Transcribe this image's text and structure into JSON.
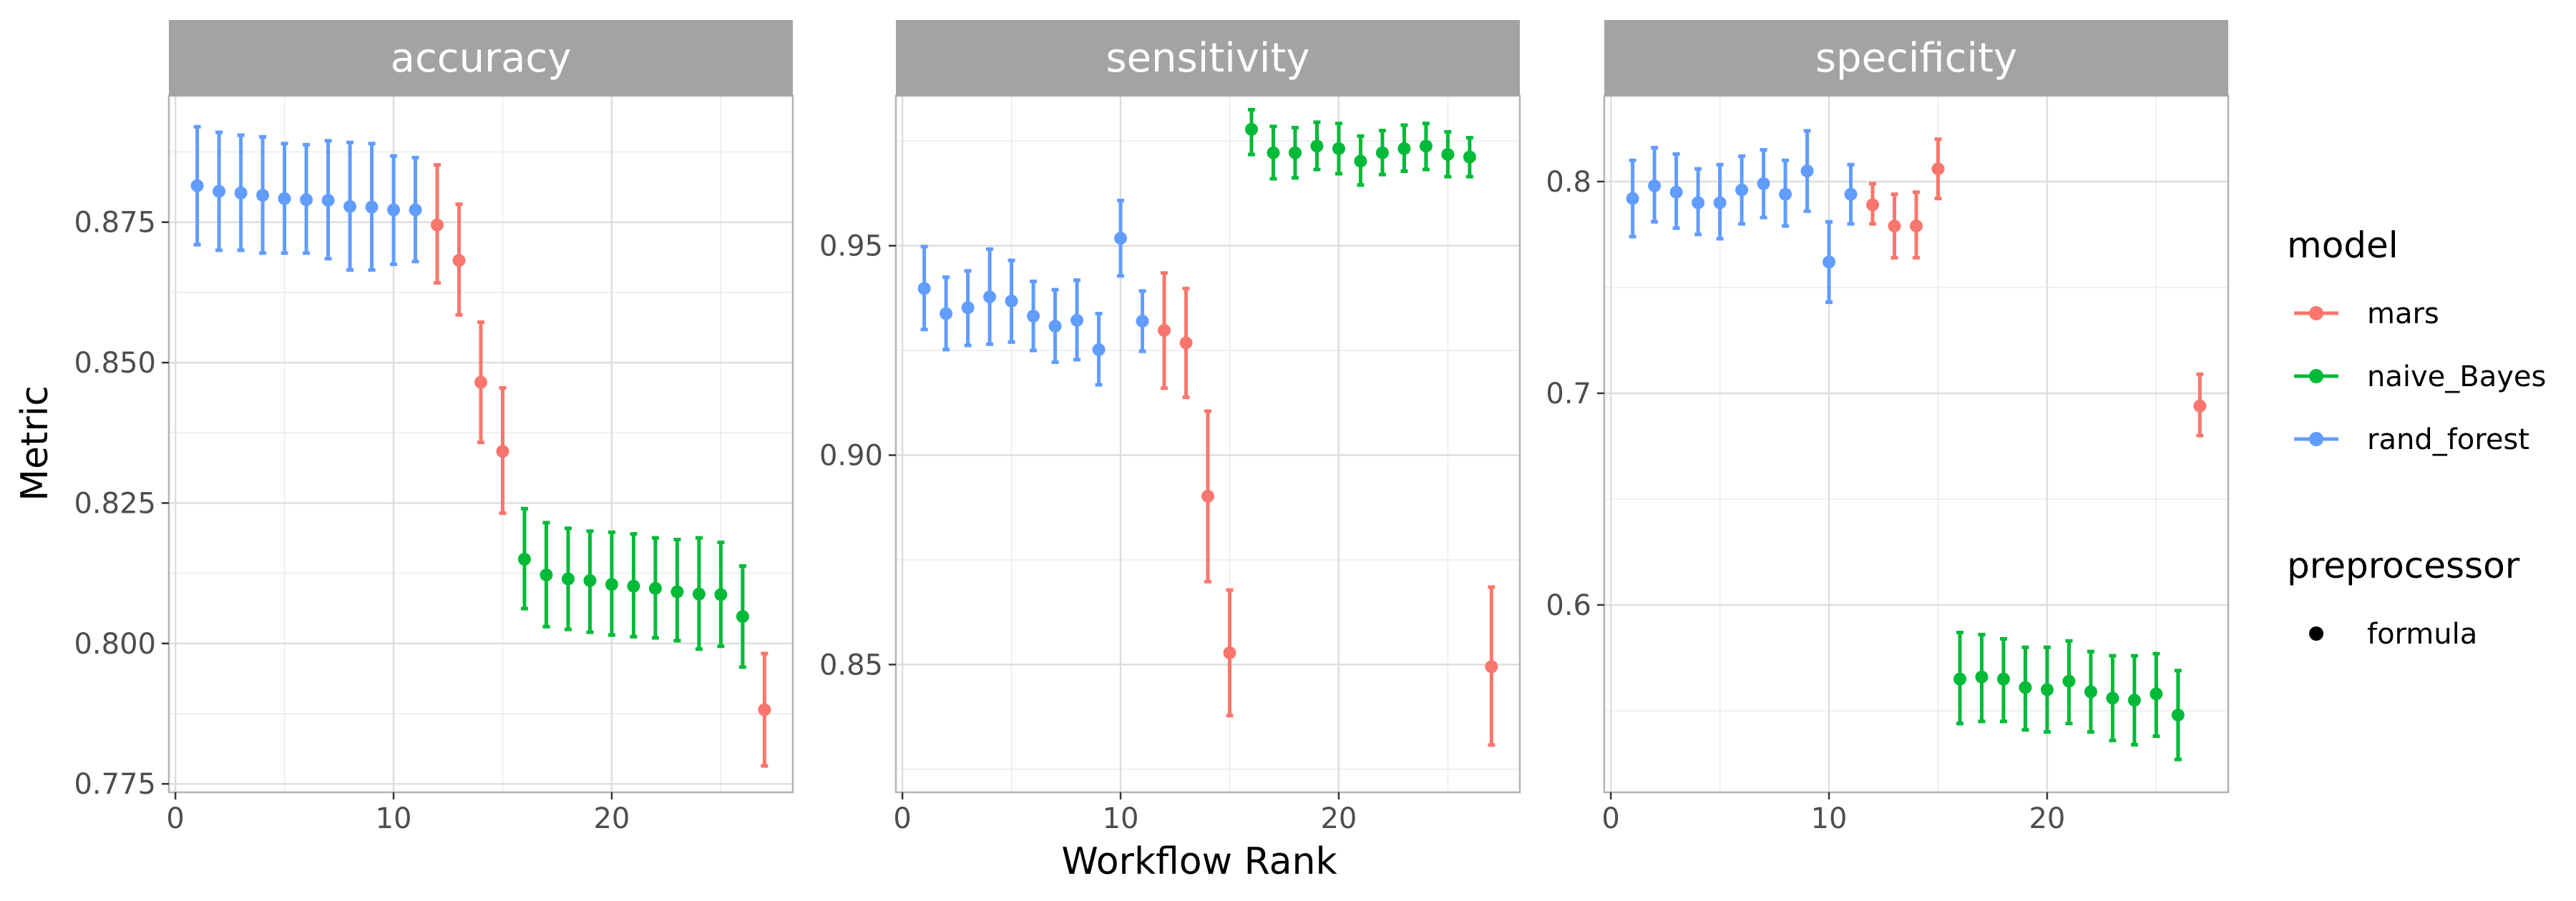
{
  "chart_data": {
    "type": "scatter",
    "xlabel": "Workflow Rank",
    "ylabel": "Metric",
    "grid": true,
    "legend_position": "right",
    "colors": {
      "mars": "#F8766D",
      "naive_Bayes": "#00BA38",
      "rand_forest": "#619CFF"
    },
    "legend": {
      "model_title": "model",
      "models": [
        "mars",
        "naive_Bayes",
        "rand_forest"
      ],
      "preprocessor_title": "preprocessor",
      "preprocessors": [
        "formula"
      ]
    },
    "x_ticks": [
      0,
      10,
      20
    ],
    "xlim": [
      -0.3,
      28.3
    ],
    "facets": [
      {
        "title": "accuracy",
        "ylim": [
          0.7735,
          0.8975
        ],
        "y_ticks": [
          0.775,
          0.8,
          0.825,
          0.85,
          0.875
        ],
        "y_tick_labels": [
          "0.775",
          "0.800",
          "0.825",
          "0.850",
          "0.875"
        ],
        "points": [
          {
            "x": 1,
            "y": 0.8815,
            "lo": 0.871,
            "hi": 0.892,
            "model": "rand_forest"
          },
          {
            "x": 2,
            "y": 0.8805,
            "lo": 0.87,
            "hi": 0.891,
            "model": "rand_forest"
          },
          {
            "x": 3,
            "y": 0.8802,
            "lo": 0.87,
            "hi": 0.8905,
            "model": "rand_forest"
          },
          {
            "x": 4,
            "y": 0.8798,
            "lo": 0.8695,
            "hi": 0.8902,
            "model": "rand_forest"
          },
          {
            "x": 5,
            "y": 0.8792,
            "lo": 0.8695,
            "hi": 0.889,
            "model": "rand_forest"
          },
          {
            "x": 6,
            "y": 0.879,
            "lo": 0.8695,
            "hi": 0.8888,
            "model": "rand_forest"
          },
          {
            "x": 7,
            "y": 0.8789,
            "lo": 0.8685,
            "hi": 0.8895,
            "model": "rand_forest"
          },
          {
            "x": 8,
            "y": 0.8778,
            "lo": 0.8665,
            "hi": 0.8892,
            "model": "rand_forest"
          },
          {
            "x": 9,
            "y": 0.8777,
            "lo": 0.8665,
            "hi": 0.889,
            "model": "rand_forest"
          },
          {
            "x": 10,
            "y": 0.8772,
            "lo": 0.8675,
            "hi": 0.8868,
            "model": "rand_forest"
          },
          {
            "x": 11,
            "y": 0.8772,
            "lo": 0.868,
            "hi": 0.8865,
            "model": "rand_forest"
          },
          {
            "x": 12,
            "y": 0.8745,
            "lo": 0.8642,
            "hi": 0.8852,
            "model": "mars"
          },
          {
            "x": 13,
            "y": 0.8682,
            "lo": 0.8585,
            "hi": 0.8782,
            "model": "mars"
          },
          {
            "x": 14,
            "y": 0.8465,
            "lo": 0.8358,
            "hi": 0.8572,
            "model": "mars"
          },
          {
            "x": 15,
            "y": 0.8342,
            "lo": 0.8232,
            "hi": 0.8455,
            "model": "mars"
          },
          {
            "x": 16,
            "y": 0.815,
            "lo": 0.8062,
            "hi": 0.824,
            "model": "naive_Bayes"
          },
          {
            "x": 17,
            "y": 0.8122,
            "lo": 0.803,
            "hi": 0.8215,
            "model": "naive_Bayes"
          },
          {
            "x": 18,
            "y": 0.8115,
            "lo": 0.8025,
            "hi": 0.8205,
            "model": "naive_Bayes"
          },
          {
            "x": 19,
            "y": 0.8112,
            "lo": 0.802,
            "hi": 0.82,
            "model": "naive_Bayes"
          },
          {
            "x": 20,
            "y": 0.8105,
            "lo": 0.8015,
            "hi": 0.8198,
            "model": "naive_Bayes"
          },
          {
            "x": 21,
            "y": 0.8102,
            "lo": 0.8012,
            "hi": 0.8195,
            "model": "naive_Bayes"
          },
          {
            "x": 22,
            "y": 0.8098,
            "lo": 0.801,
            "hi": 0.8188,
            "model": "naive_Bayes"
          },
          {
            "x": 23,
            "y": 0.8092,
            "lo": 0.8005,
            "hi": 0.8185,
            "model": "naive_Bayes"
          },
          {
            "x": 24,
            "y": 0.8088,
            "lo": 0.799,
            "hi": 0.8188,
            "model": "naive_Bayes"
          },
          {
            "x": 25,
            "y": 0.8087,
            "lo": 0.7995,
            "hi": 0.818,
            "model": "naive_Bayes"
          },
          {
            "x": 26,
            "y": 0.8048,
            "lo": 0.7958,
            "hi": 0.8138,
            "model": "naive_Bayes"
          },
          {
            "x": 27,
            "y": 0.7882,
            "lo": 0.7782,
            "hi": 0.7982,
            "model": "mars"
          }
        ]
      },
      {
        "title": "sensitivity",
        "ylim": [
          0.8195,
          0.9858
        ],
        "y_ticks": [
          0.85,
          0.9,
          0.95
        ],
        "y_tick_labels": [
          "0.85",
          "0.90",
          "0.95"
        ],
        "points": [
          {
            "x": 1,
            "y": 0.9398,
            "lo": 0.93,
            "hi": 0.9498,
            "model": "rand_forest"
          },
          {
            "x": 2,
            "y": 0.9338,
            "lo": 0.9252,
            "hi": 0.9425,
            "model": "rand_forest"
          },
          {
            "x": 3,
            "y": 0.9352,
            "lo": 0.9262,
            "hi": 0.944,
            "model": "rand_forest"
          },
          {
            "x": 4,
            "y": 0.9378,
            "lo": 0.9265,
            "hi": 0.9492,
            "model": "rand_forest"
          },
          {
            "x": 5,
            "y": 0.9368,
            "lo": 0.927,
            "hi": 0.9465,
            "model": "rand_forest"
          },
          {
            "x": 6,
            "y": 0.9332,
            "lo": 0.925,
            "hi": 0.9415,
            "model": "rand_forest"
          },
          {
            "x": 7,
            "y": 0.9308,
            "lo": 0.9222,
            "hi": 0.9395,
            "model": "rand_forest"
          },
          {
            "x": 8,
            "y": 0.9322,
            "lo": 0.9228,
            "hi": 0.9418,
            "model": "rand_forest"
          },
          {
            "x": 9,
            "y": 0.9252,
            "lo": 0.9168,
            "hi": 0.9338,
            "model": "rand_forest"
          },
          {
            "x": 10,
            "y": 0.9518,
            "lo": 0.9428,
            "hi": 0.9608,
            "model": "rand_forest"
          },
          {
            "x": 11,
            "y": 0.932,
            "lo": 0.9248,
            "hi": 0.9392,
            "model": "rand_forest"
          },
          {
            "x": 12,
            "y": 0.9298,
            "lo": 0.916,
            "hi": 0.9435,
            "model": "mars"
          },
          {
            "x": 13,
            "y": 0.9268,
            "lo": 0.9138,
            "hi": 0.9398,
            "model": "mars"
          },
          {
            "x": 14,
            "y": 0.8902,
            "lo": 0.8698,
            "hi": 0.9105,
            "model": "mars"
          },
          {
            "x": 15,
            "y": 0.8528,
            "lo": 0.8378,
            "hi": 0.8678,
            "model": "mars"
          },
          {
            "x": 16,
            "y": 0.9778,
            "lo": 0.9718,
            "hi": 0.9825,
            "model": "naive_Bayes"
          },
          {
            "x": 17,
            "y": 0.9722,
            "lo": 0.966,
            "hi": 0.9785,
            "model": "naive_Bayes"
          },
          {
            "x": 18,
            "y": 0.9722,
            "lo": 0.9662,
            "hi": 0.9782,
            "model": "naive_Bayes"
          },
          {
            "x": 19,
            "y": 0.9738,
            "lo": 0.9682,
            "hi": 0.9795,
            "model": "naive_Bayes"
          },
          {
            "x": 20,
            "y": 0.9732,
            "lo": 0.9672,
            "hi": 0.9792,
            "model": "naive_Bayes"
          },
          {
            "x": 21,
            "y": 0.9702,
            "lo": 0.9645,
            "hi": 0.9762,
            "model": "naive_Bayes"
          },
          {
            "x": 22,
            "y": 0.9722,
            "lo": 0.967,
            "hi": 0.9775,
            "model": "naive_Bayes"
          },
          {
            "x": 23,
            "y": 0.9732,
            "lo": 0.9678,
            "hi": 0.9788,
            "model": "naive_Bayes"
          },
          {
            "x": 24,
            "y": 0.9738,
            "lo": 0.9682,
            "hi": 0.9792,
            "model": "naive_Bayes"
          },
          {
            "x": 25,
            "y": 0.9718,
            "lo": 0.9665,
            "hi": 0.9772,
            "model": "naive_Bayes"
          },
          {
            "x": 26,
            "y": 0.9712,
            "lo": 0.9665,
            "hi": 0.9758,
            "model": "naive_Bayes"
          },
          {
            "x": 27,
            "y": 0.8495,
            "lo": 0.8308,
            "hi": 0.8685,
            "model": "mars"
          }
        ]
      },
      {
        "title": "specificity",
        "ylim": [
          0.5115,
          0.8405
        ],
        "y_ticks": [
          0.6,
          0.7,
          0.8
        ],
        "y_tick_labels": [
          "0.6",
          "0.7",
          "0.8"
        ],
        "points": [
          {
            "x": 1,
            "y": 0.792,
            "lo": 0.774,
            "hi": 0.81,
            "model": "rand_forest"
          },
          {
            "x": 2,
            "y": 0.798,
            "lo": 0.781,
            "hi": 0.816,
            "model": "rand_forest"
          },
          {
            "x": 3,
            "y": 0.795,
            "lo": 0.778,
            "hi": 0.813,
            "model": "rand_forest"
          },
          {
            "x": 4,
            "y": 0.79,
            "lo": 0.775,
            "hi": 0.806,
            "model": "rand_forest"
          },
          {
            "x": 5,
            "y": 0.79,
            "lo": 0.773,
            "hi": 0.808,
            "model": "rand_forest"
          },
          {
            "x": 6,
            "y": 0.796,
            "lo": 0.78,
            "hi": 0.812,
            "model": "rand_forest"
          },
          {
            "x": 7,
            "y": 0.799,
            "lo": 0.783,
            "hi": 0.815,
            "model": "rand_forest"
          },
          {
            "x": 8,
            "y": 0.794,
            "lo": 0.779,
            "hi": 0.81,
            "model": "rand_forest"
          },
          {
            "x": 9,
            "y": 0.805,
            "lo": 0.786,
            "hi": 0.824,
            "model": "rand_forest"
          },
          {
            "x": 10,
            "y": 0.762,
            "lo": 0.743,
            "hi": 0.781,
            "model": "rand_forest"
          },
          {
            "x": 11,
            "y": 0.794,
            "lo": 0.78,
            "hi": 0.808,
            "model": "rand_forest"
          },
          {
            "x": 12,
            "y": 0.789,
            "lo": 0.78,
            "hi": 0.799,
            "model": "mars"
          },
          {
            "x": 13,
            "y": 0.779,
            "lo": 0.764,
            "hi": 0.794,
            "model": "mars"
          },
          {
            "x": 14,
            "y": 0.779,
            "lo": 0.764,
            "hi": 0.795,
            "model": "mars"
          },
          {
            "x": 15,
            "y": 0.806,
            "lo": 0.792,
            "hi": 0.82,
            "model": "mars"
          },
          {
            "x": 16,
            "y": 0.565,
            "lo": 0.544,
            "hi": 0.587,
            "model": "naive_Bayes"
          },
          {
            "x": 17,
            "y": 0.566,
            "lo": 0.545,
            "hi": 0.586,
            "model": "naive_Bayes"
          },
          {
            "x": 18,
            "y": 0.565,
            "lo": 0.545,
            "hi": 0.584,
            "model": "naive_Bayes"
          },
          {
            "x": 19,
            "y": 0.561,
            "lo": 0.541,
            "hi": 0.58,
            "model": "naive_Bayes"
          },
          {
            "x": 20,
            "y": 0.56,
            "lo": 0.54,
            "hi": 0.58,
            "model": "naive_Bayes"
          },
          {
            "x": 21,
            "y": 0.564,
            "lo": 0.544,
            "hi": 0.583,
            "model": "naive_Bayes"
          },
          {
            "x": 22,
            "y": 0.559,
            "lo": 0.54,
            "hi": 0.578,
            "model": "naive_Bayes"
          },
          {
            "x": 23,
            "y": 0.556,
            "lo": 0.536,
            "hi": 0.576,
            "model": "naive_Bayes"
          },
          {
            "x": 24,
            "y": 0.555,
            "lo": 0.534,
            "hi": 0.576,
            "model": "naive_Bayes"
          },
          {
            "x": 25,
            "y": 0.558,
            "lo": 0.538,
            "hi": 0.577,
            "model": "naive_Bayes"
          },
          {
            "x": 26,
            "y": 0.548,
            "lo": 0.527,
            "hi": 0.569,
            "model": "naive_Bayes"
          },
          {
            "x": 27,
            "y": 0.694,
            "lo": 0.68,
            "hi": 0.709,
            "model": "mars"
          }
        ]
      }
    ]
  }
}
